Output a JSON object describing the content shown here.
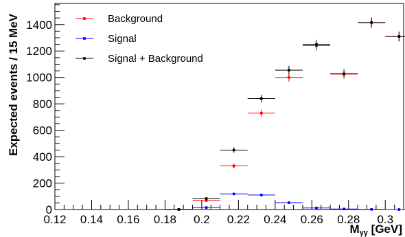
{
  "chart_data": {
    "type": "scatter",
    "xlabel": "M",
    "xlabel_sub": "γγ",
    "xlabel_unit": " [GeV]",
    "ylabel": "Expected events / 15 MeV",
    "xlim": [
      0.12,
      0.31
    ],
    "ylim": [
      0,
      1560
    ],
    "bin_half_width": 0.0075,
    "x_ticks": [
      "0.12",
      "0.14",
      "0.16",
      "0.18",
      "0.2",
      "0.22",
      "0.24",
      "0.26",
      "0.28",
      "0.3"
    ],
    "y_ticks": [
      "0",
      "200",
      "400",
      "600",
      "800",
      "1000",
      "1200",
      "1400"
    ],
    "legend_position": "top-left",
    "series": [
      {
        "name": "Background",
        "color": "#ff0000",
        "x": [
          0.1875,
          0.2025,
          0.2175,
          0.2325,
          0.2475,
          0.2625,
          0.2775,
          0.2925,
          0.3075
        ],
        "y": [
          1,
          68,
          330,
          730,
          1000,
          1240,
          1025,
          1415,
          1310
        ],
        "err": [
          1,
          8,
          18,
          27,
          32,
          36,
          33,
          38,
          37
        ]
      },
      {
        "name": "Signal",
        "color": "#0000ff",
        "x": [
          0.1875,
          0.2025,
          0.2175,
          0.2325,
          0.2475,
          0.2625,
          0.2775,
          0.2925,
          0.3075
        ],
        "y": [
          0,
          15,
          118,
          110,
          52,
          12,
          4,
          1,
          0
        ],
        "err": [
          0,
          3,
          8,
          8,
          5,
          3,
          2,
          1,
          0
        ]
      },
      {
        "name": "Signal + Background",
        "color": "#000000",
        "x": [
          0.1875,
          0.2025,
          0.2175,
          0.2325,
          0.2475,
          0.2625,
          0.2775,
          0.2925,
          0.3075
        ],
        "y": [
          1,
          83,
          450,
          840,
          1055,
          1250,
          1028,
          1415,
          1310
        ],
        "err": [
          1,
          9,
          21,
          29,
          33,
          36,
          33,
          38,
          37
        ]
      }
    ]
  }
}
